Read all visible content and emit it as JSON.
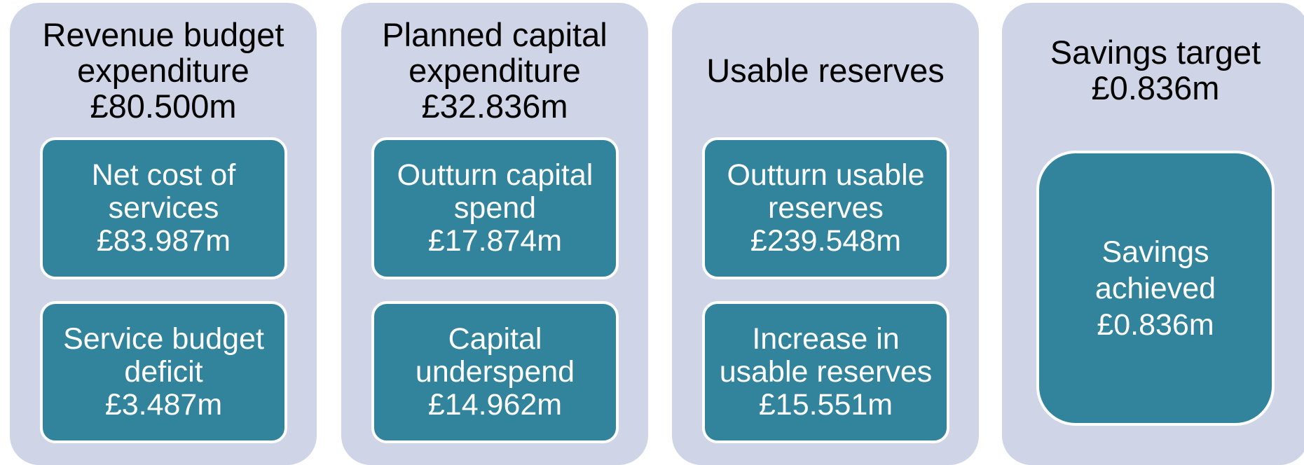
{
  "panels": [
    {
      "title": [
        "Revenue budget",
        "expenditure",
        "£80.500m"
      ],
      "boxes": [
        {
          "lines": [
            "Net cost of",
            "services",
            "£83.987m"
          ]
        },
        {
          "lines": [
            "Service budget",
            "deficit",
            "£3.487m"
          ]
        }
      ]
    },
    {
      "title": [
        "Planned capital",
        "expenditure",
        "£32.836m"
      ],
      "boxes": [
        {
          "lines": [
            "Outturn capital",
            "spend",
            "£17.874m"
          ]
        },
        {
          "lines": [
            "Capital",
            "underspend",
            "£14.962m"
          ]
        }
      ]
    },
    {
      "title": [
        "Usable reserves"
      ],
      "boxes": [
        {
          "lines": [
            "Outturn usable",
            "reserves",
            "£239.548m"
          ]
        },
        {
          "lines": [
            "Increase in",
            "usable reserves",
            "£15.551m"
          ]
        }
      ]
    },
    {
      "title": [
        "Savings target",
        "£0.836m"
      ],
      "boxes": [
        {
          "lines": [
            "Savings",
            "achieved",
            "£0.836m"
          ]
        }
      ]
    }
  ]
}
